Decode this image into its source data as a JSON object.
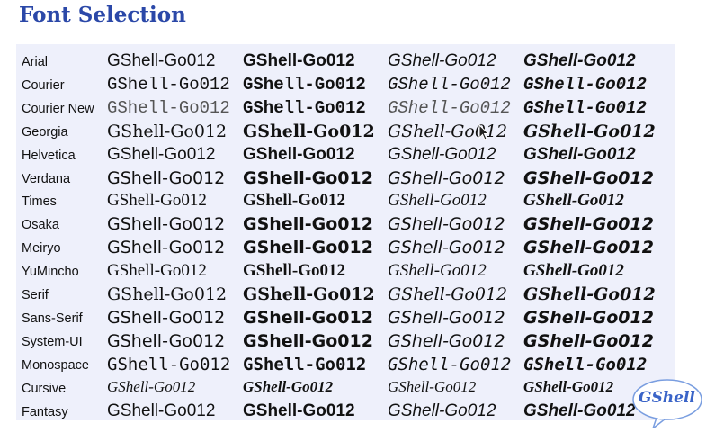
{
  "title": "Font Selection",
  "sample_text": "GShell-Go012",
  "fonts": [
    "Arial",
    "Courier",
    "Courier New",
    "Georgia",
    "Helvetica",
    "Verdana",
    "Times",
    "Osaka",
    "Meiryo",
    "YuMincho",
    "Serif",
    "Sans-Serif",
    "System-UI",
    "Monospace",
    "Cursive",
    "Fantasy"
  ],
  "styles": [
    "regular",
    "bold",
    "italic",
    "bold-italic"
  ],
  "logo_text": "GShell",
  "colors": {
    "title": "#2b48a8",
    "panel": "#eef0fb",
    "logo": "#3a64c8"
  }
}
